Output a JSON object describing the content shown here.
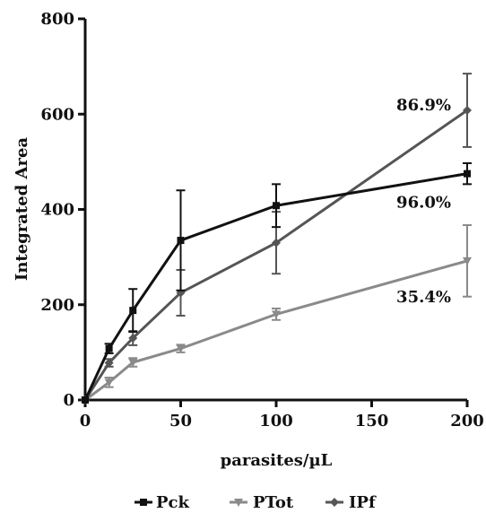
{
  "chart_data": {
    "type": "line",
    "xlabel": "parasites/µL",
    "ylabel": "Integrated Area",
    "xlim": [
      0,
      200
    ],
    "ylim": [
      0,
      800
    ],
    "xticks": [
      "0",
      "50",
      "100",
      "150",
      "200"
    ],
    "yticks": [
      "0",
      "200",
      "400",
      "600",
      "800"
    ],
    "grid": false,
    "legend_position": "bottom",
    "series": [
      {
        "name": "Pck",
        "color": "#111111",
        "marker": "square",
        "x": [
          0,
          12.5,
          25,
          50,
          100,
          200
        ],
        "y": [
          0,
          108,
          188,
          335,
          408,
          475
        ],
        "err": [
          0,
          10,
          45,
          105,
          45,
          22
        ]
      },
      {
        "name": "PTot",
        "color": "#8a8a8a",
        "marker": "triangle-down",
        "x": [
          0,
          12.5,
          25,
          50,
          100,
          200
        ],
        "y": [
          0,
          37,
          79,
          108,
          180,
          292
        ],
        "err": [
          0,
          10,
          9,
          8,
          12,
          75
        ]
      },
      {
        "name": "IPf",
        "color": "#555555",
        "marker": "diamond",
        "x": [
          0,
          12.5,
          25,
          50,
          100,
          200
        ],
        "y": [
          0,
          78,
          130,
          225,
          330,
          608
        ],
        "err": [
          0,
          8,
          15,
          48,
          65,
          77
        ]
      }
    ],
    "annotations": [
      {
        "text": "86.9%",
        "x": 200,
        "y": 608
      },
      {
        "text": "96.0%",
        "x": 200,
        "y": 475
      },
      {
        "text": "35.4%",
        "x": 200,
        "y": 292
      }
    ]
  }
}
